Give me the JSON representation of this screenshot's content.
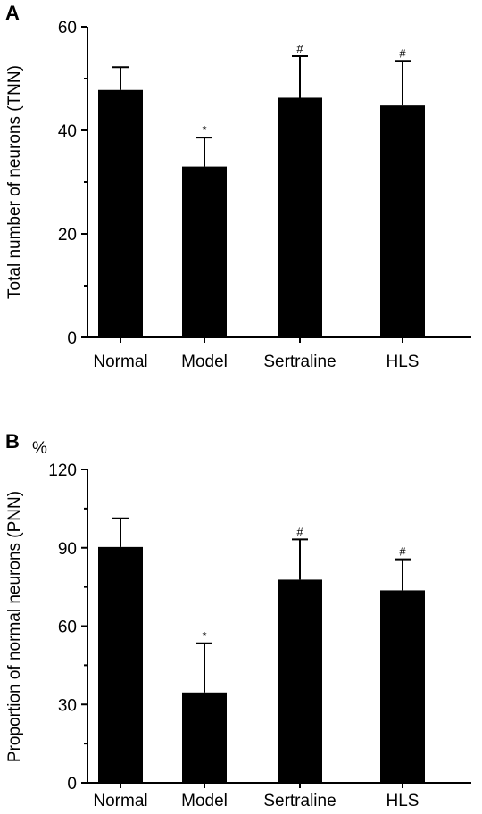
{
  "chart_data": [
    {
      "panel_label": "A",
      "type": "bar",
      "categories": [
        "Normal",
        "Model",
        "Sertraline",
        "HLS"
      ],
      "values": [
        47.8,
        33.0,
        46.3,
        44.8
      ],
      "errors": [
        4.4,
        5.6,
        8.0,
        8.6
      ],
      "annotations": [
        "",
        "*",
        "#",
        "#"
      ],
      "ylabel": "Total number of neurons (TNN)",
      "unit_label": "",
      "yticks": [
        0,
        20,
        40,
        60
      ],
      "ytick_labels": [
        "0",
        "20",
        "40",
        "60"
      ],
      "ylim": [
        0,
        60
      ]
    },
    {
      "panel_label": "B",
      "type": "bar",
      "categories": [
        "Normal",
        "Model",
        "Sertraline",
        "HLS"
      ],
      "values": [
        90.3,
        34.6,
        77.8,
        73.7
      ],
      "errors": [
        11.0,
        18.8,
        15.4,
        11.9
      ],
      "annotations": [
        "",
        "*",
        "#",
        "#"
      ],
      "ylabel": "Proportion of normal neurons (PNN)",
      "unit_label": "%",
      "yticks": [
        0,
        30,
        60,
        90,
        120
      ],
      "ytick_labels": [
        "0",
        "30",
        "60",
        "90",
        "120"
      ],
      "ylim": [
        0,
        120
      ]
    }
  ]
}
